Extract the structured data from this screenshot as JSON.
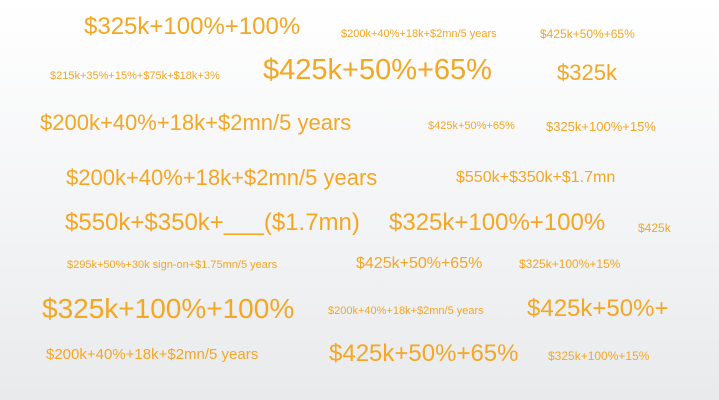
{
  "accent_color": "#f5a623",
  "words": [
    "$325k+100%+100%",
    "$200k+40%+18k+$2mn/5 years",
    "$425k+50%+65%",
    "$215k+35%+15%+$75k+$18k+3%",
    "$425k+50%+65%",
    "$325k",
    "$200k+40%+18k+$2mn/5 years",
    "$425k+50%+65%",
    "$325k+100%+15%",
    "$200k+40%+18k+$2mn/5 years",
    "$550k+$350k+$1.7mn",
    "$550k+$350k+___($1.7mn)",
    "$325k+100%+100%",
    "$425k",
    "$295k+50%+30k sign-on+$1.75mn/5 years",
    "$425k+50%+65%",
    "$325k+100%+15%",
    "$325k+100%+100%",
    "$200k+40%+18k+$2mn/5 years",
    "$425k+50%+",
    "$200k+40%+18k+$2mn/5 years",
    "$425k+50%+65%",
    "$325k+100%+15%"
  ]
}
